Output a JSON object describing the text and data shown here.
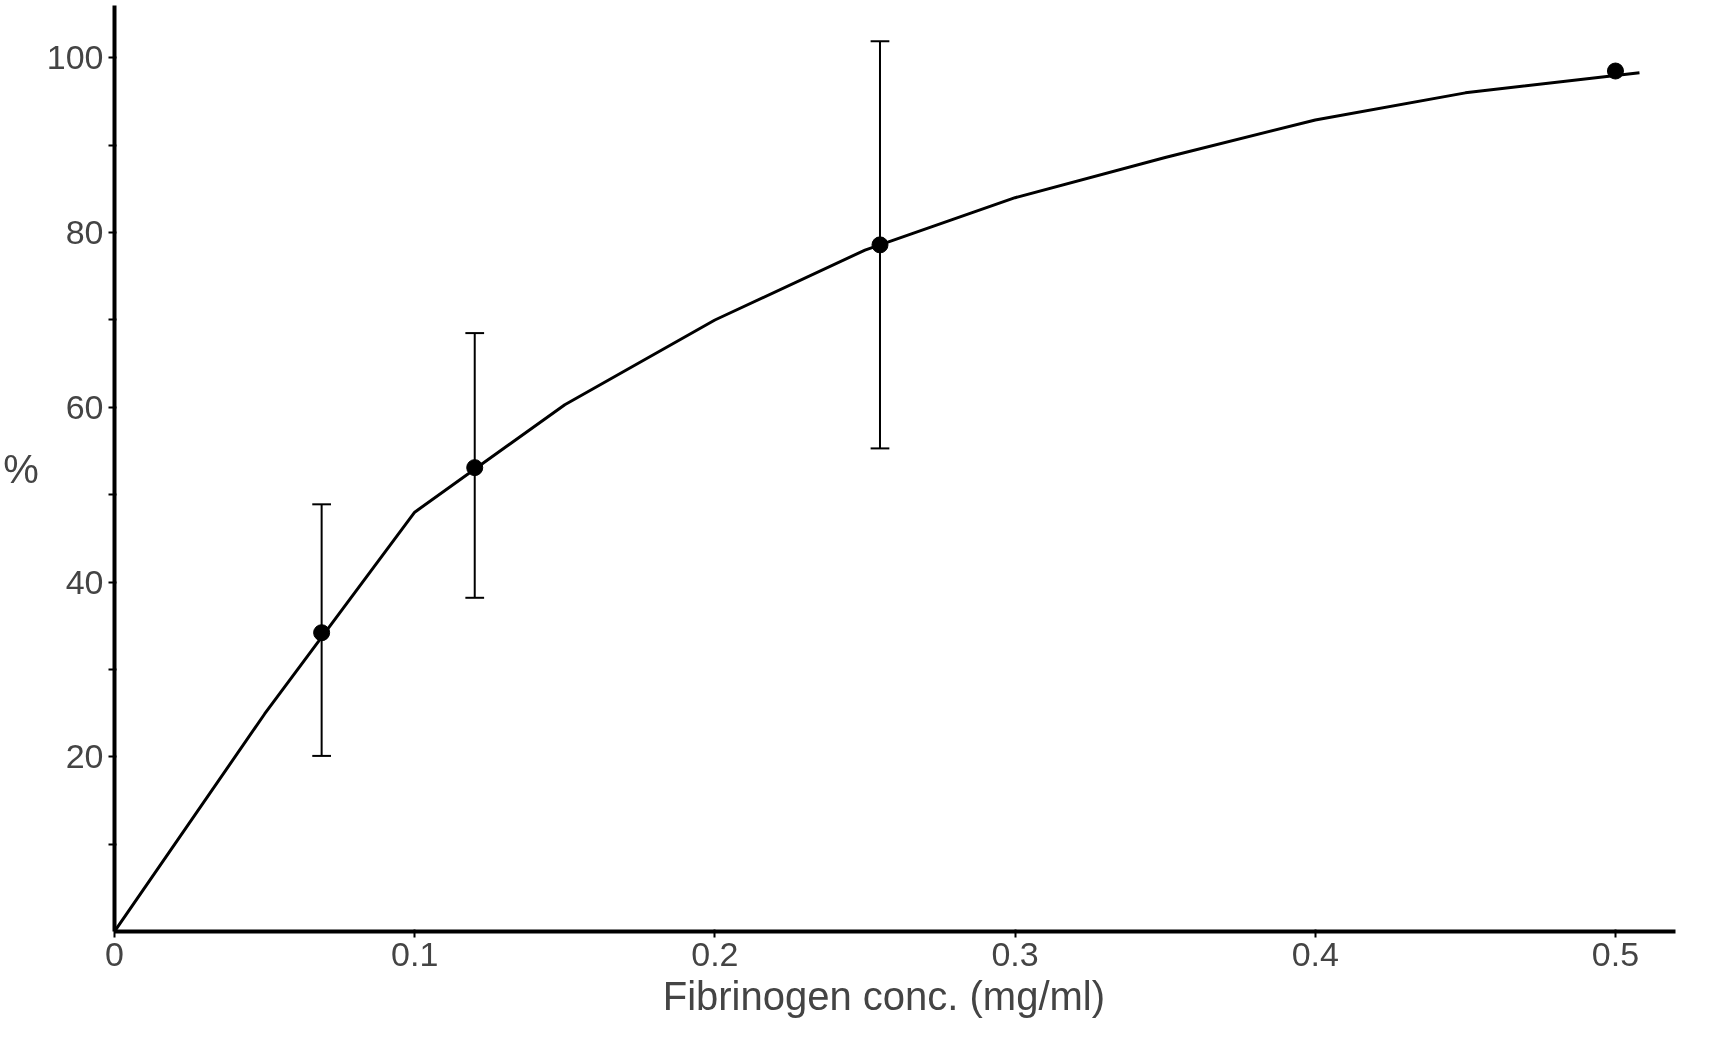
{
  "chart_data": {
    "type": "scatter",
    "xlabel": "Fibrinogen  conc.  (mg/ml)",
    "ylabel": "%",
    "xlim": [
      0,
      0.52
    ],
    "ylim": [
      0,
      106
    ],
    "xticks": [
      0,
      0.1,
      0.2,
      0.3,
      0.4,
      0.5
    ],
    "yticks": [
      {
        "value": 10,
        "label": null
      },
      20,
      {
        "value": 30,
        "label": null
      },
      40,
      {
        "value": 50,
        "label": null
      },
      60,
      {
        "value": 70,
        "label": null
      },
      80,
      {
        "value": 90,
        "label": null
      },
      100
    ],
    "grid": false,
    "series": [
      {
        "color": "#000000",
        "marker": "circle",
        "x": [
          0.069,
          0.12,
          0.255,
          0.5
        ],
        "values": [
          34.2,
          53.1,
          78.6,
          98.5
        ],
        "errors": [
          [
            20.1,
            48.9
          ],
          [
            38.2,
            68.5
          ],
          [
            55.3,
            101.9
          ],
          null
        ]
      },
      {
        "type": "line",
        "color": "#000000",
        "x": [
          0,
          0.05,
          0.1,
          0.15,
          0.2,
          0.25,
          0.3,
          0.35,
          0.4,
          0.45,
          0.508
        ],
        "values": [
          0,
          24.9,
          48,
          60.3,
          70,
          78,
          84,
          88.6,
          92.9,
          96,
          98.3
        ]
      }
    ]
  }
}
